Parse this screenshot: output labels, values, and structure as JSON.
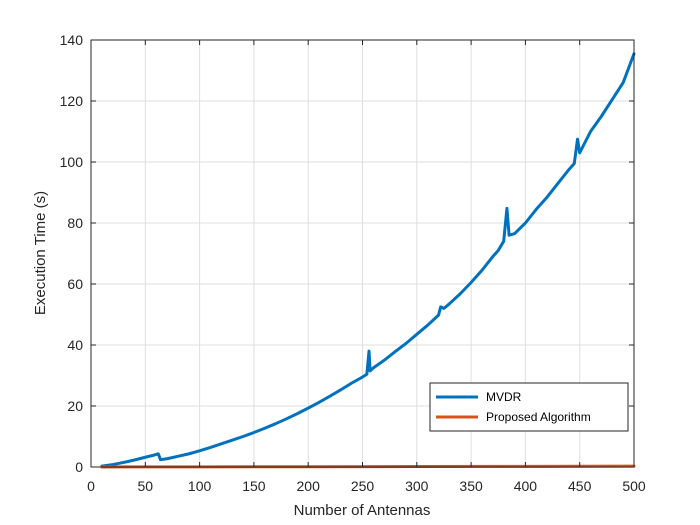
{
  "chart_data": {
    "type": "line",
    "xlabel": "Number of Antennas",
    "ylabel": "Execution Time (s)",
    "xlim": [
      0,
      500
    ],
    "ylim": [
      0,
      140
    ],
    "xticks": [
      "0",
      "50",
      "100",
      "150",
      "200",
      "250",
      "300",
      "350",
      "400",
      "450",
      "500"
    ],
    "yticks": [
      "0",
      "20",
      "40",
      "60",
      "80",
      "100",
      "120",
      "140"
    ],
    "grid": true,
    "legend_position": "bottom-right",
    "series": [
      {
        "name": "MVDR",
        "color": "#0072BD",
        "points": [
          [
            10,
            0.3
          ],
          [
            20,
            0.8
          ],
          [
            30,
            1.5
          ],
          [
            40,
            2.3
          ],
          [
            50,
            3.2
          ],
          [
            58,
            3.9
          ],
          [
            62,
            4.3
          ],
          [
            64,
            2.4
          ],
          [
            70,
            2.7
          ],
          [
            80,
            3.5
          ],
          [
            90,
            4.3
          ],
          [
            100,
            5.3
          ],
          [
            110,
            6.4
          ],
          [
            120,
            7.6
          ],
          [
            130,
            8.8
          ],
          [
            140,
            10.0
          ],
          [
            150,
            11.3
          ],
          [
            160,
            12.7
          ],
          [
            170,
            14.2
          ],
          [
            180,
            15.8
          ],
          [
            190,
            17.5
          ],
          [
            200,
            19.3
          ],
          [
            210,
            21.2
          ],
          [
            220,
            23.2
          ],
          [
            230,
            25.3
          ],
          [
            240,
            27.5
          ],
          [
            250,
            29.5
          ],
          [
            254,
            30.4
          ],
          [
            256,
            38.0
          ],
          [
            257,
            31.5
          ],
          [
            260,
            32.5
          ],
          [
            270,
            35.0
          ],
          [
            280,
            37.8
          ],
          [
            290,
            40.5
          ],
          [
            300,
            43.5
          ],
          [
            310,
            46.5
          ],
          [
            320,
            49.8
          ],
          [
            322,
            52.5
          ],
          [
            325,
            52.0
          ],
          [
            330,
            53.5
          ],
          [
            340,
            56.8
          ],
          [
            350,
            60.5
          ],
          [
            360,
            64.5
          ],
          [
            370,
            69.0
          ],
          [
            375,
            71.0
          ],
          [
            380,
            74.0
          ],
          [
            383,
            84.8
          ],
          [
            385,
            76.0
          ],
          [
            390,
            76.5
          ],
          [
            400,
            80.0
          ],
          [
            410,
            84.5
          ],
          [
            420,
            88.5
          ],
          [
            430,
            93.0
          ],
          [
            440,
            97.5
          ],
          [
            445,
            99.5
          ],
          [
            448,
            107.5
          ],
          [
            450,
            103.0
          ],
          [
            460,
            110.0
          ],
          [
            470,
            115.0
          ],
          [
            480,
            120.5
          ],
          [
            490,
            126.0
          ],
          [
            500,
            135.5
          ]
        ]
      },
      {
        "name": "Proposed Algorithm",
        "color": "#D95319",
        "points": [
          [
            10,
            0.02
          ],
          [
            100,
            0.05
          ],
          [
            200,
            0.1
          ],
          [
            300,
            0.15
          ],
          [
            400,
            0.2
          ],
          [
            500,
            0.28
          ]
        ]
      }
    ]
  }
}
